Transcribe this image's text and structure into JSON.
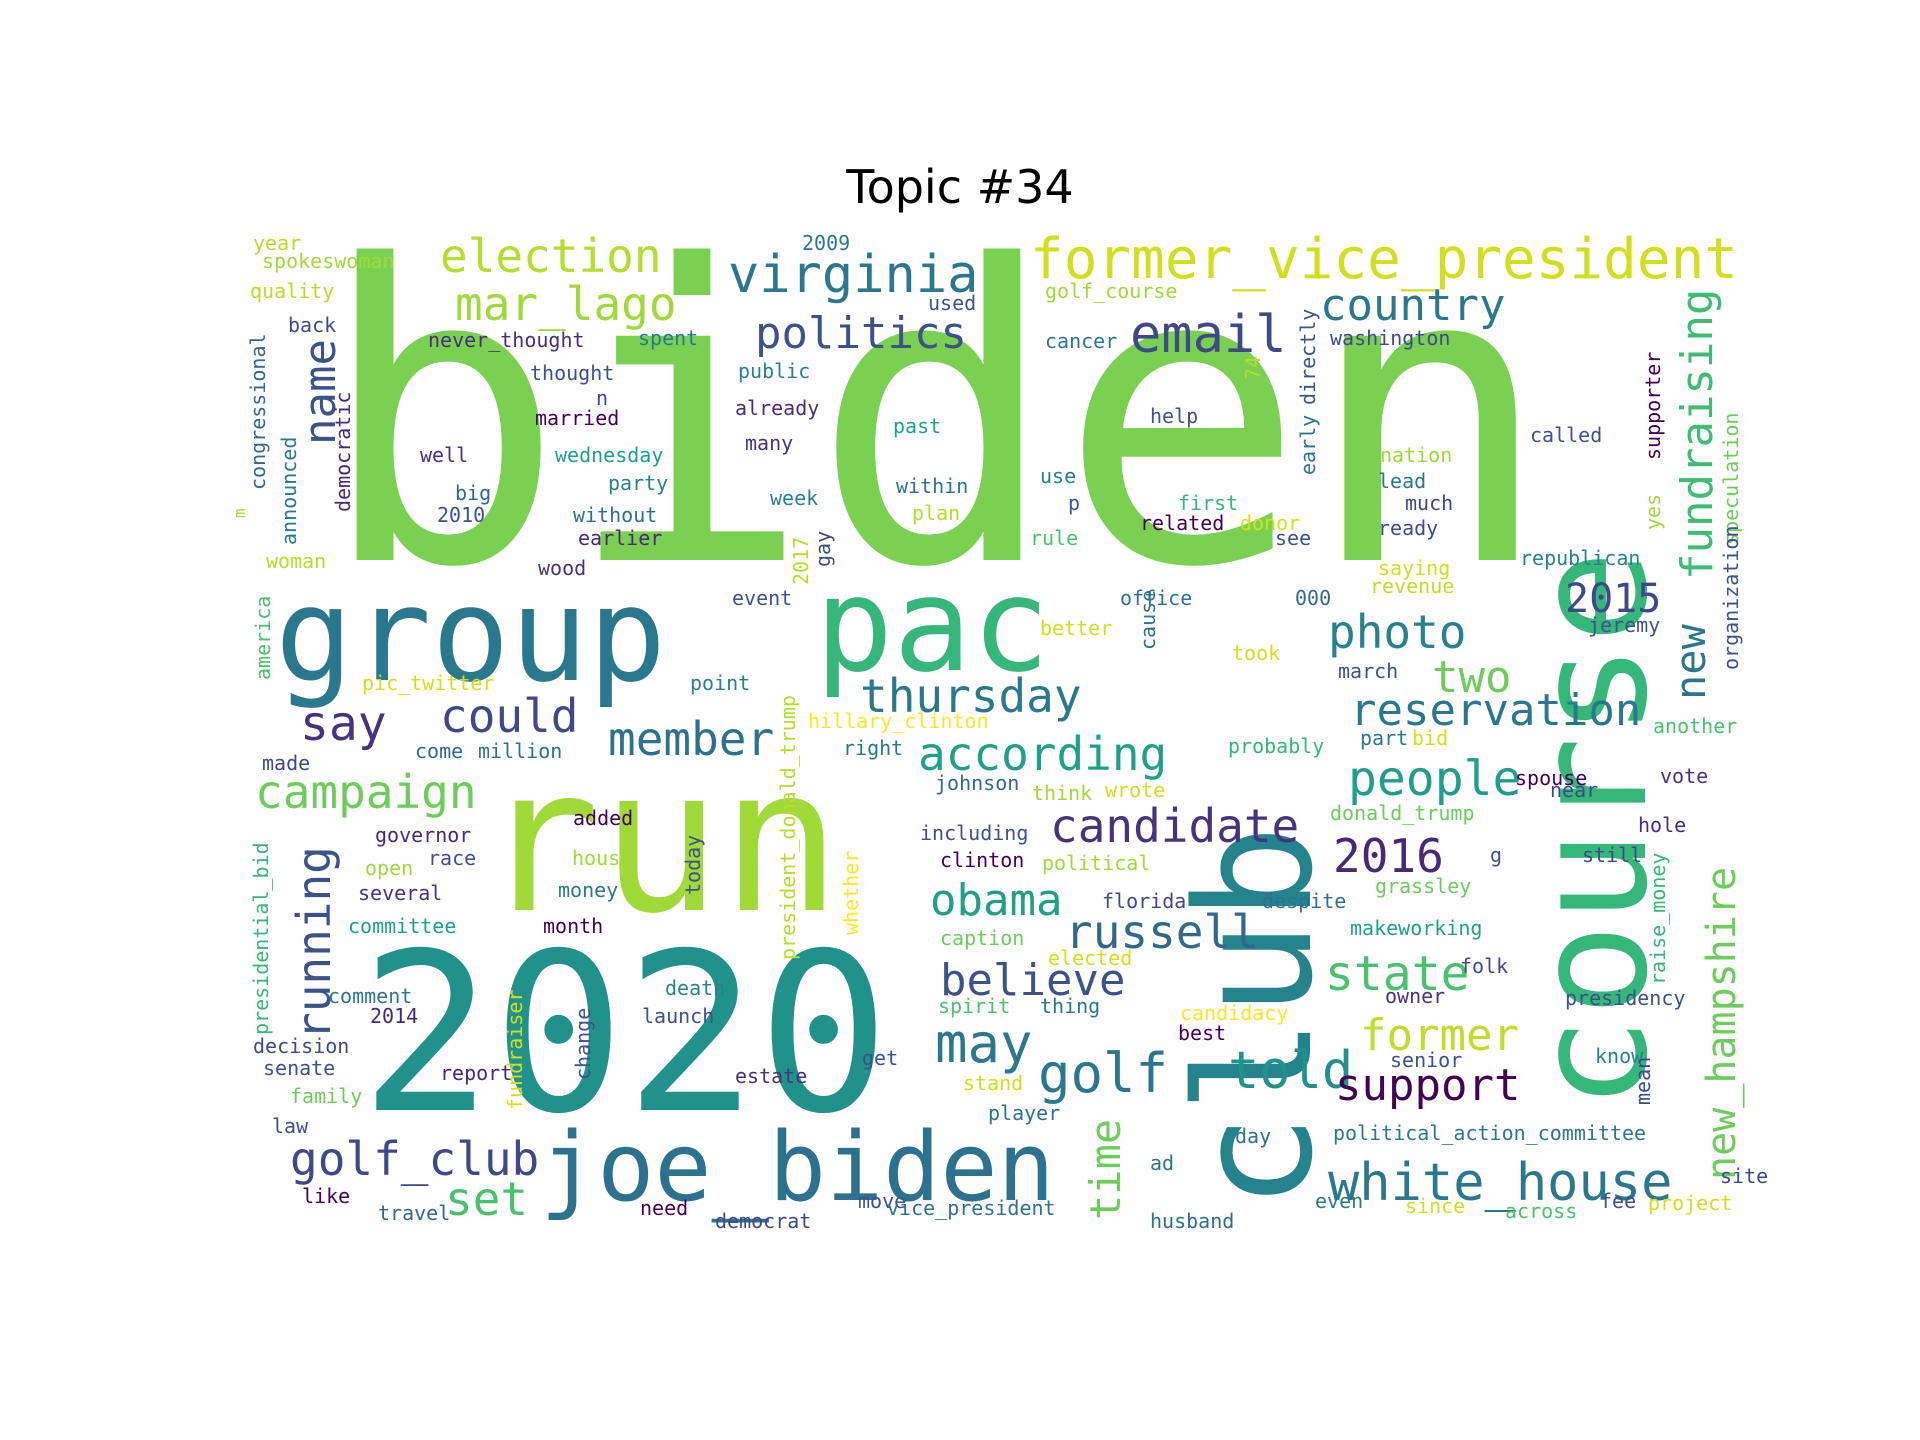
{
  "title": "Topic #34",
  "palette": [
    "#440154",
    "#46327e",
    "#365c8d",
    "#277f8e",
    "#1fa187",
    "#4ac16d",
    "#a0da39",
    "#fde725"
  ],
  "words": [
    {
      "text": "biden",
      "color": "#7ad151"
    },
    {
      "text": "run",
      "color": "#a0da39"
    },
    {
      "text": "2020",
      "color": "#21918c"
    },
    {
      "text": "club",
      "color": "#25838e"
    },
    {
      "text": "course",
      "color": "#35b779"
    },
    {
      "text": "group",
      "color": "#2a788e"
    },
    {
      "text": "pac",
      "color": "#35b779"
    },
    {
      "text": "joe_biden",
      "color": "#2c728e"
    },
    {
      "text": "former_vice_president",
      "color": "#d0e11c"
    },
    {
      "text": "virginia",
      "color": "#2a788e"
    },
    {
      "text": "election",
      "color": "#b5de2b"
    },
    {
      "text": "mar_lago",
      "color": "#a0da39"
    },
    {
      "text": "politics",
      "color": "#3b528b"
    },
    {
      "text": "email",
      "color": "#3e4989"
    },
    {
      "text": "country",
      "color": "#2a788e"
    },
    {
      "text": "fundraising",
      "color": "#3dbc74"
    },
    {
      "text": "name",
      "color": "#3b528b"
    },
    {
      "text": "thursday",
      "color": "#2a788e"
    },
    {
      "text": "photo",
      "color": "#26828e"
    },
    {
      "text": "2015",
      "color": "#3e4989"
    },
    {
      "text": "say",
      "color": "#46337e"
    },
    {
      "text": "could",
      "color": "#3e4989"
    },
    {
      "text": "member",
      "color": "#2c728e"
    },
    {
      "text": "according",
      "color": "#1fa187"
    },
    {
      "text": "reservation",
      "color": "#2a788e"
    },
    {
      "text": "two",
      "color": "#6ccd5a"
    },
    {
      "text": "new",
      "color": "#2a788e"
    },
    {
      "text": "campaign",
      "color": "#6ccd5a"
    },
    {
      "text": "people",
      "color": "#1f9e89"
    },
    {
      "text": "candidate",
      "color": "#46337e"
    },
    {
      "text": "running",
      "color": "#3b528b"
    },
    {
      "text": "2016",
      "color": "#482878"
    },
    {
      "text": "obama",
      "color": "#1fa187"
    },
    {
      "text": "russell",
      "color": "#31688e"
    },
    {
      "text": "believe",
      "color": "#3b528b"
    },
    {
      "text": "may",
      "color": "#2a788e"
    },
    {
      "text": "golf",
      "color": "#2a788e"
    },
    {
      "text": "told",
      "color": "#21918c"
    },
    {
      "text": "state",
      "color": "#4ac16d"
    },
    {
      "text": "former",
      "color": "#bddf26"
    },
    {
      "text": "support",
      "color": "#440154"
    },
    {
      "text": "new_hampshire",
      "color": "#6ccd5a"
    },
    {
      "text": "time",
      "color": "#6ccd5a"
    },
    {
      "text": "golf_club",
      "color": "#3e4989"
    },
    {
      "text": "set",
      "color": "#4ac16d"
    },
    {
      "text": "white_house",
      "color": "#2a788e"
    },
    {
      "text": "year",
      "color": "#b5de2b"
    },
    {
      "text": "spokeswoman",
      "color": "#a0da39"
    },
    {
      "text": "quality",
      "color": "#b5de2b"
    },
    {
      "text": "back",
      "color": "#3e4989"
    },
    {
      "text": "congressional",
      "color": "#31688e"
    },
    {
      "text": "democratic",
      "color": "#482878"
    },
    {
      "text": "announced",
      "color": "#2a788e"
    },
    {
      "text": "woman",
      "color": "#b5de2b"
    },
    {
      "text": "america",
      "color": "#4ac16d"
    },
    {
      "text": "never_thought",
      "color": "#472d7b"
    },
    {
      "text": "thought",
      "color": "#3b528b"
    },
    {
      "text": "married",
      "color": "#440154"
    },
    {
      "text": "well",
      "color": "#46337e"
    },
    {
      "text": "big",
      "color": "#31688e"
    },
    {
      "text": "2010",
      "color": "#3b528b"
    },
    {
      "text": "without",
      "color": "#2c728e"
    },
    {
      "text": "earlier",
      "color": "#482878"
    },
    {
      "text": "wood",
      "color": "#46337e"
    },
    {
      "text": "wednesday",
      "color": "#1fa187"
    },
    {
      "text": "party",
      "color": "#26828e"
    },
    {
      "text": "n",
      "color": "#3e4989"
    },
    {
      "text": "spent",
      "color": "#2a788e"
    },
    {
      "text": "public",
      "color": "#26828e"
    },
    {
      "text": "already",
      "color": "#472d7b"
    },
    {
      "text": "many",
      "color": "#46337e"
    },
    {
      "text": "week",
      "color": "#26828e"
    },
    {
      "text": "2017",
      "color": "#b5de2b"
    },
    {
      "text": "gay",
      "color": "#3e4989"
    },
    {
      "text": "event",
      "color": "#3b528b"
    },
    {
      "text": "2009",
      "color": "#2a788e"
    },
    {
      "text": "used",
      "color": "#3b528b"
    },
    {
      "text": "past",
      "color": "#1fa187"
    },
    {
      "text": "within",
      "color": "#2c728e"
    },
    {
      "text": "plan",
      "color": "#b5de2b"
    },
    {
      "text": "golf_course",
      "color": "#a0da39"
    },
    {
      "text": "cancer",
      "color": "#2a788e"
    },
    {
      "text": "help",
      "color": "#3b528b"
    },
    {
      "text": "use",
      "color": "#26828e"
    },
    {
      "text": "p",
      "color": "#3b528b"
    },
    {
      "text": "rule",
      "color": "#4ac16d"
    },
    {
      "text": "first",
      "color": "#35b779"
    },
    {
      "text": "related",
      "color": "#440154"
    },
    {
      "text": "donor",
      "color": "#d0e11c"
    },
    {
      "text": "see",
      "color": "#3b528b"
    },
    {
      "text": "74",
      "color": "#b5de2b"
    },
    {
      "text": "directly",
      "color": "#3b528b"
    },
    {
      "text": "early",
      "color": "#2c728e"
    },
    {
      "text": "office",
      "color": "#2c728e"
    },
    {
      "text": "000",
      "color": "#31688e"
    },
    {
      "text": "revenue",
      "color": "#bddf26"
    },
    {
      "text": "better",
      "color": "#d0e11c"
    },
    {
      "text": "cause",
      "color": "#2c728e"
    },
    {
      "text": "took",
      "color": "#d0e11c"
    },
    {
      "text": "washington",
      "color": "#3e4989"
    },
    {
      "text": "nation",
      "color": "#a0da39"
    },
    {
      "text": "lead",
      "color": "#2a788e"
    },
    {
      "text": "much",
      "color": "#3e4989"
    },
    {
      "text": "ready",
      "color": "#3e4989"
    },
    {
      "text": "saying",
      "color": "#d0e11c"
    },
    {
      "text": "called",
      "color": "#3b528b"
    },
    {
      "text": "supporter",
      "color": "#440154"
    },
    {
      "text": "speculation",
      "color": "#6ccd5a"
    },
    {
      "text": "organization",
      "color": "#3b528b"
    },
    {
      "text": "yes",
      "color": "#a0da39"
    },
    {
      "text": "republican",
      "color": "#26828e"
    },
    {
      "text": "jeremy",
      "color": "#3b528b"
    },
    {
      "text": "march",
      "color": "#3b528b"
    },
    {
      "text": "another",
      "color": "#4ac16d"
    },
    {
      "text": "pic_twitter",
      "color": "#d0e11c"
    },
    {
      "text": "point",
      "color": "#26828e"
    },
    {
      "text": "made",
      "color": "#3e4989"
    },
    {
      "text": "come",
      "color": "#31688e"
    },
    {
      "text": "million",
      "color": "#2c728e"
    },
    {
      "text": "hillary_clinton",
      "color": "#fde725"
    },
    {
      "text": "right",
      "color": "#2a788e"
    },
    {
      "text": "president_donald_trump",
      "color": "#b5de2b"
    },
    {
      "text": "johnson",
      "color": "#31688e"
    },
    {
      "text": "think",
      "color": "#a0da39"
    },
    {
      "text": "wrote",
      "color": "#d0e11c"
    },
    {
      "text": "spouse",
      "color": "#440154"
    },
    {
      "text": "near",
      "color": "#3e4989"
    },
    {
      "text": "vote",
      "color": "#46337e"
    },
    {
      "text": "probably",
      "color": "#35b779"
    },
    {
      "text": "part",
      "color": "#2a788e"
    },
    {
      "text": "bid",
      "color": "#d0e11c"
    },
    {
      "text": "governor",
      "color": "#482878"
    },
    {
      "text": "race",
      "color": "#3b528b"
    },
    {
      "text": "open",
      "color": "#a0da39"
    },
    {
      "text": "several",
      "color": "#46337e"
    },
    {
      "text": "added",
      "color": "#440154"
    },
    {
      "text": "house",
      "color": "#a0da39"
    },
    {
      "text": "money",
      "color": "#2a788e"
    },
    {
      "text": "today",
      "color": "#3b528b"
    },
    {
      "text": "whether",
      "color": "#fde725"
    },
    {
      "text": "including",
      "color": "#3b528b"
    },
    {
      "text": "clinton",
      "color": "#440154"
    },
    {
      "text": "political",
      "color": "#a0da39"
    },
    {
      "text": "donald_trump",
      "color": "#6ccd5a"
    },
    {
      "text": "hole",
      "color": "#472d7b"
    },
    {
      "text": "g",
      "color": "#3b528b"
    },
    {
      "text": "still",
      "color": "#3e4989"
    },
    {
      "text": "raise_money",
      "color": "#35b779"
    },
    {
      "text": "presidential_bid",
      "color": "#35b779"
    },
    {
      "text": "committee",
      "color": "#1fa187"
    },
    {
      "text": "month",
      "color": "#440154"
    },
    {
      "text": "fundraiser",
      "color": "#d0e11c"
    },
    {
      "text": "florida",
      "color": "#3e4989"
    },
    {
      "text": "despite",
      "color": "#2c728e"
    },
    {
      "text": "grassley",
      "color": "#6ccd5a"
    },
    {
      "text": "caption",
      "color": "#6ccd5a"
    },
    {
      "text": "elected",
      "color": "#d0e11c"
    },
    {
      "text": "makeworking",
      "color": "#1fa187"
    },
    {
      "text": "folk",
      "color": "#3e4989"
    },
    {
      "text": "owner",
      "color": "#46337e"
    },
    {
      "text": "presidency",
      "color": "#3b528b"
    },
    {
      "text": "comment",
      "color": "#2a788e"
    },
    {
      "text": "2014",
      "color": "#482878"
    },
    {
      "text": "change",
      "color": "#3b528b"
    },
    {
      "text": "death",
      "color": "#26828e"
    },
    {
      "text": "launch",
      "color": "#3b528b"
    },
    {
      "text": "spirit",
      "color": "#4ac16d"
    },
    {
      "text": "thing",
      "color": "#2a788e"
    },
    {
      "text": "candidacy",
      "color": "#fde725"
    },
    {
      "text": "best",
      "color": "#440154"
    },
    {
      "text": "decision",
      "color": "#3e4989"
    },
    {
      "text": "senate",
      "color": "#3b528b"
    },
    {
      "text": "report",
      "color": "#482878"
    },
    {
      "text": "estate",
      "color": "#46337e"
    },
    {
      "text": "get",
      "color": "#3b528b"
    },
    {
      "text": "senior",
      "color": "#3b528b"
    },
    {
      "text": "know",
      "color": "#26828e"
    },
    {
      "text": "mean",
      "color": "#3e4989"
    },
    {
      "text": "family",
      "color": "#6ccd5a"
    },
    {
      "text": "stand",
      "color": "#d0e11c"
    },
    {
      "text": "player",
      "color": "#2c728e"
    },
    {
      "text": "day",
      "color": "#2c728e"
    },
    {
      "text": "political_action_committee",
      "color": "#2a788e"
    },
    {
      "text": "law",
      "color": "#3b528b"
    },
    {
      "text": "ad",
      "color": "#2c728e"
    },
    {
      "text": "site",
      "color": "#3e4989"
    },
    {
      "text": "like",
      "color": "#440154"
    },
    {
      "text": "travel",
      "color": "#31688e"
    },
    {
      "text": "need",
      "color": "#440154"
    },
    {
      "text": "move",
      "color": "#3b528b"
    },
    {
      "text": "democrat",
      "color": "#3e4989"
    },
    {
      "text": "vice_president",
      "color": "#2c728e"
    },
    {
      "text": "husband",
      "color": "#2c728e"
    },
    {
      "text": "even",
      "color": "#2a788e"
    },
    {
      "text": "since",
      "color": "#d0e11c"
    },
    {
      "text": "across",
      "color": "#4ac16d"
    },
    {
      "text": "fee",
      "color": "#3b528b"
    },
    {
      "text": "project",
      "color": "#d0e11c"
    },
    {
      "text": "m",
      "color": "#a0da39"
    }
  ]
}
